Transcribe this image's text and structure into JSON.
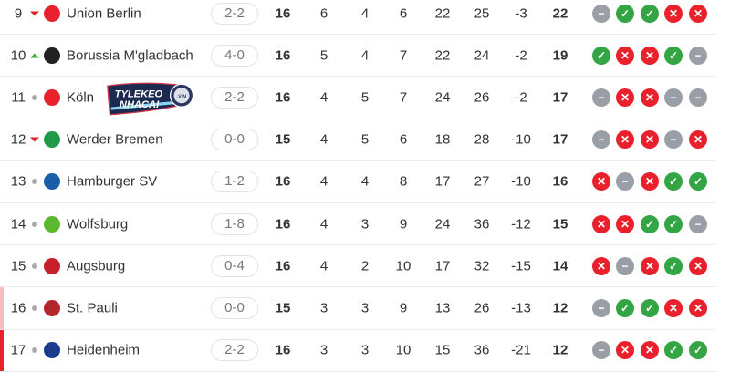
{
  "colors": {
    "win": "#34a544",
    "loss": "#e8212c",
    "draw": "#9a9ea6",
    "relegation_playoff": "#f7bcc4",
    "relegation": "#e8212c"
  },
  "form_icons": {
    "W": "check-icon",
    "L": "x-icon",
    "D": "minus-icon"
  },
  "rows": [
    {
      "rank": "9",
      "trend": "down",
      "team": "Union Berlin",
      "last_score": "2-2",
      "played": "16",
      "won": "6",
      "drawn": "4",
      "lost": "6",
      "gf": "22",
      "ga": "25",
      "gd": "-3",
      "pts": "22",
      "form": [
        "D",
        "W",
        "W",
        "L",
        "L"
      ],
      "zone": ""
    },
    {
      "rank": "10",
      "trend": "up",
      "team": "Borussia M'gladbach",
      "last_score": "4-0",
      "played": "16",
      "won": "5",
      "drawn": "4",
      "lost": "7",
      "gf": "22",
      "ga": "24",
      "gd": "-2",
      "pts": "19",
      "form": [
        "W",
        "L",
        "L",
        "W",
        "D"
      ],
      "zone": ""
    },
    {
      "rank": "11",
      "trend": "same",
      "team": "Köln",
      "last_score": "2-2",
      "played": "16",
      "won": "4",
      "drawn": "5",
      "lost": "7",
      "gf": "24",
      "ga": "26",
      "gd": "-2",
      "pts": "17",
      "form": [
        "D",
        "L",
        "L",
        "D",
        "D"
      ],
      "zone": ""
    },
    {
      "rank": "12",
      "trend": "down",
      "team": "Werder Bremen",
      "last_score": "0-0",
      "played": "15",
      "won": "4",
      "drawn": "5",
      "lost": "6",
      "gf": "18",
      "ga": "28",
      "gd": "-10",
      "pts": "17",
      "form": [
        "D",
        "L",
        "L",
        "D",
        "L"
      ],
      "zone": ""
    },
    {
      "rank": "13",
      "trend": "same",
      "team": "Hamburger SV",
      "last_score": "1-2",
      "played": "16",
      "won": "4",
      "drawn": "4",
      "lost": "8",
      "gf": "17",
      "ga": "27",
      "gd": "-10",
      "pts": "16",
      "form": [
        "L",
        "D",
        "L",
        "W",
        "W"
      ],
      "zone": ""
    },
    {
      "rank": "14",
      "trend": "same",
      "team": "Wolfsburg",
      "last_score": "1-8",
      "played": "16",
      "won": "4",
      "drawn": "3",
      "lost": "9",
      "gf": "24",
      "ga": "36",
      "gd": "-12",
      "pts": "15",
      "form": [
        "L",
        "L",
        "W",
        "W",
        "D"
      ],
      "zone": ""
    },
    {
      "rank": "15",
      "trend": "same",
      "team": "Augsburg",
      "last_score": "0-4",
      "played": "16",
      "won": "4",
      "drawn": "2",
      "lost": "10",
      "gf": "17",
      "ga": "32",
      "gd": "-15",
      "pts": "14",
      "form": [
        "L",
        "D",
        "L",
        "W",
        "L"
      ],
      "zone": ""
    },
    {
      "rank": "16",
      "trend": "same",
      "team": "St. Pauli",
      "last_score": "0-0",
      "played": "15",
      "won": "3",
      "drawn": "3",
      "lost": "9",
      "gf": "13",
      "ga": "26",
      "gd": "-13",
      "pts": "12",
      "form": [
        "D",
        "W",
        "W",
        "L",
        "L"
      ],
      "zone": "relegation_playoff"
    },
    {
      "rank": "17",
      "trend": "same",
      "team": "Heidenheim",
      "last_score": "2-2",
      "played": "16",
      "won": "3",
      "drawn": "3",
      "lost": "10",
      "gf": "15",
      "ga": "36",
      "gd": "-21",
      "pts": "12",
      "form": [
        "D",
        "L",
        "L",
        "W",
        "W"
      ],
      "zone": "relegation"
    }
  ],
  "team_logo_colors": [
    "#e8212c",
    "#222222",
    "#e8212c",
    "#1e9a4a",
    "#1a5ea8",
    "#5cb82e",
    "#c8202a",
    "#b3262e",
    "#1b3c8c"
  ],
  "watermark": {
    "line1": "TYLEKEO",
    "line2": "NHACAI",
    "suffix": ".VIN"
  }
}
